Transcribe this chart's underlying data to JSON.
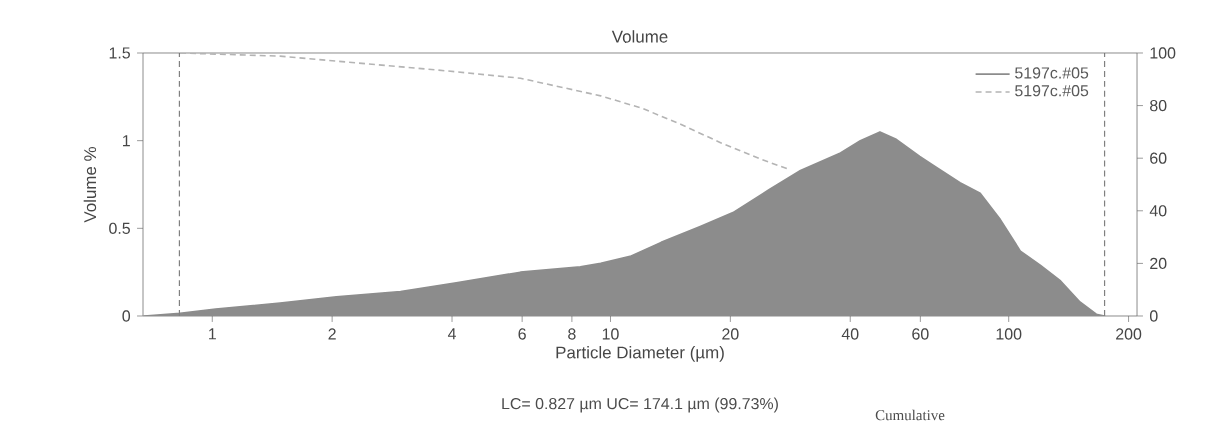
{
  "chart_data": {
    "type": "area",
    "title": "Volume",
    "xlabel": "Particle Diameter (µm)",
    "ylabel": "Volume %",
    "annotations": [
      "LC= 0.827 µm   UC= 174.1 µm (99.73%)",
      "Cumulative"
    ],
    "log": "x",
    "legend": "top right",
    "xlim": [
      0.67,
      210
    ],
    "xticks": [
      1,
      2,
      4,
      6,
      8,
      10,
      20,
      40,
      60,
      100,
      200
    ],
    "ylim": [
      0,
      1.5
    ],
    "yticks": [
      0,
      0.5,
      1,
      1.5
    ],
    "y2lim": [
      0,
      100
    ],
    "y2ticks": [
      0,
      20,
      40,
      60,
      80,
      100
    ],
    "ref_lines": [
      {
        "axis": "x",
        "value": 0.827,
        "color": "#808080",
        "line_style": "dashed"
      },
      {
        "axis": "x",
        "value": 174.1,
        "color": "#808080",
        "line_style": "dashed"
      }
    ],
    "series": [
      {
        "name": "5197c.#05",
        "color": "#8c8c8c",
        "line_style": "solid",
        "x": [
          0.675,
          0.83,
          1.02,
          1.48,
          2.05,
          2.97,
          4.1,
          5.94,
          8.4,
          9.45,
          11.2,
          13.4,
          16.8,
          20.3,
          25.0,
          30.0,
          37.8,
          42.4,
          47.5,
          52.0,
          59.8,
          65.6,
          75.5,
          84.8,
          95.3,
          107,
          120,
          135,
          151,
          166,
          174
        ],
        "values": [
          0.0,
          0.016,
          0.04,
          0.074,
          0.11,
          0.14,
          0.19,
          0.25,
          0.28,
          0.3,
          0.34,
          0.42,
          0.51,
          0.59,
          0.72,
          0.83,
          0.93,
          1.0,
          1.05,
          1.01,
          0.91,
          0.85,
          0.76,
          0.7,
          0.55,
          0.37,
          0.29,
          0.2,
          0.08,
          0.01,
          0.0
        ]
      },
      {
        "name": "5197c.#05",
        "type": "line",
        "axis": "y2",
        "color": "#b4b4b4",
        "line_style": "dashed",
        "x": [
          0.83,
          1.48,
          3.7,
          5.94,
          9.45,
          12.0,
          15.0,
          18.9,
          23.8,
          28.0
        ],
        "values": [
          100,
          98.8,
          93.5,
          90.4,
          83.7,
          79,
          72.9,
          65.9,
          59.7,
          55.8
        ]
      }
    ]
  }
}
